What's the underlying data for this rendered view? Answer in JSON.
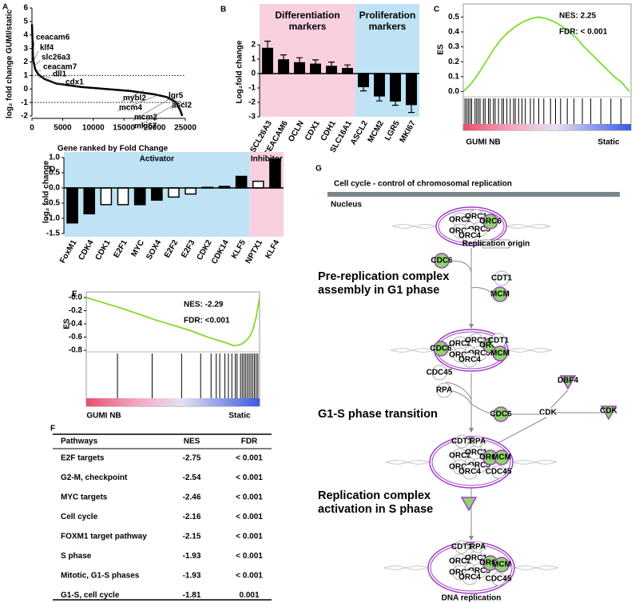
{
  "chart_data": [
    {
      "panel": "A",
      "type": "line",
      "y_label": "log₂ fold change GUMI/static",
      "x_label": "Gene ranked by Fold Change",
      "x": [
        0,
        200,
        500,
        1000,
        2000,
        4000,
        8000,
        12000,
        16000,
        20000,
        22000,
        23500,
        24200,
        24500
      ],
      "values": [
        4.8,
        2.2,
        1.5,
        1.1,
        0.75,
        0.4,
        0.15,
        0,
        -0.15,
        -0.4,
        -0.6,
        -1.0,
        -1.6,
        -2.0
      ],
      "color": "#000000",
      "xlim": [
        0,
        25000
      ],
      "xticks": [
        0,
        5000,
        10000,
        15000,
        20000,
        25000
      ],
      "ylim": [
        -2,
        6
      ],
      "yticks": [
        -2,
        -1,
        0,
        1,
        2,
        3,
        4,
        5,
        6
      ],
      "reference_lines": [
        1,
        -1
      ],
      "annotations": [
        "ceacam6",
        "klf4",
        "slc26a3",
        "ceacam7",
        "dll1",
        "cdx1",
        "lgr5",
        "ascl2",
        "mybl2",
        "mcm4",
        "mcm2",
        "mki67"
      ]
    },
    {
      "panel": "B",
      "type": "bar",
      "y_label": "Log₂fold change",
      "categories": [
        "SCL26A3",
        "CEACAM6",
        "OCLN",
        "CDX1",
        "CDH1",
        "SLC16A1",
        "ASCL2",
        "MCM2",
        "LGR5",
        "MKI67"
      ],
      "values": [
        1.75,
        0.95,
        0.75,
        0.65,
        0.5,
        0.35,
        -0.9,
        -1.55,
        -1.9,
        -2.15
      ],
      "errors": [
        0.5,
        0.35,
        0.35,
        0.3,
        0.3,
        0.25,
        0.3,
        0.35,
        0.3,
        0.55
      ],
      "color": "#000000",
      "ylim": [
        -3,
        2
      ],
      "yticks": [
        -3,
        -2,
        -1,
        0,
        1,
        2
      ],
      "group_labels": [
        "Differentiation markers",
        "Proliferation markers"
      ],
      "group_colors": [
        "#f9d0e0",
        "#bfe3f5"
      ]
    },
    {
      "panel": "C",
      "type": "gsea",
      "y_label": "ES",
      "x": [
        0,
        4.5,
        9,
        13.5,
        18,
        22.5,
        27,
        31.5,
        36,
        40.5,
        45,
        49.5,
        54,
        58.5,
        63,
        67.5,
        72,
        76.5,
        81,
        85.5,
        90,
        94.5,
        99
      ],
      "values": [
        0,
        0.05,
        0.12,
        0.2,
        0.28,
        0.35,
        0.4,
        0.44,
        0.47,
        0.49,
        0.5,
        0.49,
        0.47,
        0.44,
        0.4,
        0.36,
        0.3,
        0.25,
        0.2,
        0.15,
        0.1,
        0.06,
        0
      ],
      "color": "#7fdc2a",
      "xlim": [
        0,
        100
      ],
      "ylim": [
        -0.03,
        0.55
      ],
      "yticks": [
        {
          "value": 0,
          "label": "0.0"
        },
        0.1,
        0.2,
        0.3,
        0.4,
        0.5
      ],
      "hits": [
        1,
        2,
        3,
        4,
        5,
        7,
        8,
        9,
        10,
        12,
        13,
        15,
        16,
        18,
        19,
        21,
        23,
        24,
        26,
        28,
        30,
        31,
        33,
        35,
        37,
        40,
        42,
        45,
        48,
        52,
        55,
        58,
        62,
        66,
        71,
        76,
        82,
        88,
        94
      ],
      "annotations": [
        "NES: 2.25",
        "FDR: < 0.001"
      ],
      "left_label": "GUMI NB",
      "right_label": "Static"
    },
    {
      "panel": "D",
      "type": "bar",
      "y_label": "log₂ fold change",
      "categories": [
        "FoxM1",
        "CDK4",
        "CDK1",
        "E2F1",
        "MYC",
        "SOX4",
        "E2F2",
        "E2F3",
        "CDK2",
        "CDK14",
        "KLF5",
        "NPTX1",
        "KLF4"
      ],
      "values": [
        -1.15,
        -0.85,
        -0.55,
        -0.55,
        -0.55,
        -0.4,
        -0.3,
        -0.2,
        0.02,
        0.05,
        0.38,
        0.22,
        0.95
      ],
      "colors": [
        "#000000",
        "#000000",
        "#ffffff",
        "#ffffff",
        "#000000",
        "#000000",
        "#ffffff",
        "#ffffff",
        "#000000",
        "#000000",
        "#000000",
        "#ffffff",
        "#000000"
      ],
      "ylim": [
        -1.5,
        1.0
      ],
      "yticks": [
        -1.5,
        {
          "value": -1,
          "label": "-1.0"
        },
        -0.5,
        {
          "value": 0,
          "label": "0.0"
        },
        0.5,
        {
          "value": 1,
          "label": "1.0"
        }
      ],
      "group_labels": [
        "Activator",
        "Inhibitor"
      ],
      "group_colors": [
        "#bfe3f5",
        "#f9d0e0"
      ]
    },
    {
      "panel": "E",
      "type": "gsea",
      "y_label": "ES",
      "x": [
        0,
        10,
        20,
        30,
        40,
        50,
        60,
        70,
        80,
        85,
        88,
        90,
        92,
        94,
        96,
        98,
        100
      ],
      "values": [
        0,
        -0.08,
        -0.16,
        -0.25,
        -0.34,
        -0.42,
        -0.5,
        -0.6,
        -0.68,
        -0.73,
        -0.72,
        -0.7,
        -0.66,
        -0.6,
        -0.5,
        -0.3,
        0
      ],
      "color": "#7fdc2a",
      "xlim": [
        0,
        100
      ],
      "ylim": [
        -0.8,
        0
      ],
      "yticks": [
        {
          "value": 0,
          "label": "-0.0"
        },
        -0.2,
        -0.4,
        -0.6,
        -0.8
      ],
      "hits": [
        18,
        38,
        55,
        66,
        72,
        75,
        77,
        80,
        82,
        84,
        86,
        87,
        89,
        90,
        91,
        92,
        93,
        94,
        95,
        96,
        97,
        98,
        99
      ],
      "annotations": [
        "NES: -2.29",
        "FDR: <0.001"
      ],
      "left_label": "GUMI NB",
      "right_label": "Static"
    }
  ],
  "table": {
    "panel": "F",
    "header": [
      "Pathways",
      "NES",
      "FDR"
    ],
    "rows": [
      [
        "E2F targets",
        "-2.75",
        "< 0.001"
      ],
      [
        "G2-M, checkpoint",
        "-2.54",
        "< 0.001"
      ],
      [
        "MYC targets",
        "-2.46",
        "< 0.001"
      ],
      [
        "Cell cycle",
        "-2.16",
        "< 0.001"
      ],
      [
        "FOXM1 target pathway",
        "-2.15",
        "< 0.001"
      ],
      [
        "S phase",
        "-1.93",
        "< 0.001"
      ],
      [
        "Mitotic, G1-S phases",
        "-1.93",
        "< 0.001"
      ],
      [
        "G1-S, cell cycle",
        "-1.81",
        "0.001"
      ]
    ]
  },
  "diagram": {
    "panel": "G",
    "title": "Cell cycle -  control of chromosomal replication",
    "compartment": "Nucleus",
    "stages": [
      "Pre-replication complex assembly in G1 phase",
      "G1-S phase transition",
      "Replication complex activation in S phase"
    ],
    "nodes": [
      "ORC1",
      "ORC2",
      "ORC3",
      "ORC4",
      "ORC5",
      "ORC6",
      "CDC6",
      "CDT1",
      "MCM",
      "CDC45",
      "RPA",
      "DBF4",
      "CDK",
      "Replication origin",
      "DNA replication"
    ]
  }
}
